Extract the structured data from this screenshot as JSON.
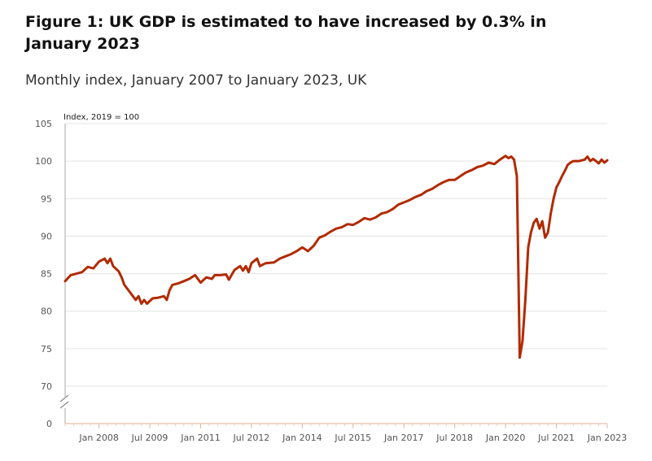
{
  "header": {
    "title": "Figure 1: UK GDP is estimated to have increased by 0.3% in January 2023",
    "subtitle": "Monthly index, January 2007 to January 2023, UK"
  },
  "chart_data": {
    "type": "line",
    "title": "Figure 1: UK GDP is estimated to have increased by 0.3% in January 2023",
    "subtitle": "Monthly index, January 2007 to January 2023, UK",
    "ylabel": "Index, 2019 = 100",
    "xlabel": "",
    "ylim": [
      0,
      105
    ],
    "y_axis_break": true,
    "y_ticks": [
      0,
      70,
      75,
      80,
      85,
      90,
      95,
      100,
      105
    ],
    "x_tick_labels": [
      "Jan 2008",
      "Jul 2009",
      "Jan 2011",
      "Jul 2012",
      "Jan 2014",
      "Jul 2015",
      "Jan 2017",
      "Jul 2018",
      "Jan 2020",
      "Jul 2021",
      "Jan 2023"
    ],
    "x_tick_dates": [
      "2008-01",
      "2009-07",
      "2011-01",
      "2012-07",
      "2014-01",
      "2015-07",
      "2017-01",
      "2018-07",
      "2020-01",
      "2021-07",
      "2023-01"
    ],
    "x_range": [
      "2007-01",
      "2023-01"
    ],
    "grid": true,
    "line_color": "#b22a00",
    "series": [
      {
        "values": [
          [
            "2007-01",
            84.0
          ],
          [
            "2007-03",
            84.8
          ],
          [
            "2007-05",
            85.0
          ],
          [
            "2007-07",
            85.2
          ],
          [
            "2007-09",
            85.9
          ],
          [
            "2007-11",
            85.7
          ],
          [
            "2008-01",
            86.6
          ],
          [
            "2008-03",
            87.0
          ],
          [
            "2008-04",
            86.4
          ],
          [
            "2008-05",
            87.0
          ],
          [
            "2008-06",
            86.0
          ],
          [
            "2008-08",
            85.3
          ],
          [
            "2008-09",
            84.5
          ],
          [
            "2008-10",
            83.5
          ],
          [
            "2008-11",
            83.0
          ],
          [
            "2008-12",
            82.5
          ],
          [
            "2009-01",
            82.0
          ],
          [
            "2009-02",
            81.5
          ],
          [
            "2009-03",
            82.0
          ],
          [
            "2009-04",
            81.0
          ],
          [
            "2009-05",
            81.5
          ],
          [
            "2009-06",
            81.0
          ],
          [
            "2009-08",
            81.7
          ],
          [
            "2009-10",
            81.8
          ],
          [
            "2009-12",
            82.0
          ],
          [
            "2010-01",
            81.5
          ],
          [
            "2010-02",
            82.8
          ],
          [
            "2010-03",
            83.5
          ],
          [
            "2010-05",
            83.7
          ],
          [
            "2010-07",
            84.0
          ],
          [
            "2010-09",
            84.3
          ],
          [
            "2010-11",
            84.8
          ],
          [
            "2011-01",
            83.8
          ],
          [
            "2011-03",
            84.5
          ],
          [
            "2011-05",
            84.3
          ],
          [
            "2011-06",
            84.8
          ],
          [
            "2011-08",
            84.8
          ],
          [
            "2011-10",
            84.9
          ],
          [
            "2011-11",
            84.2
          ],
          [
            "2012-01",
            85.5
          ],
          [
            "2012-03",
            86.0
          ],
          [
            "2012-04",
            85.4
          ],
          [
            "2012-05",
            86.0
          ],
          [
            "2012-06",
            85.2
          ],
          [
            "2012-07",
            86.4
          ],
          [
            "2012-09",
            87.0
          ],
          [
            "2012-10",
            86.0
          ],
          [
            "2012-12",
            86.4
          ],
          [
            "2013-03",
            86.5
          ],
          [
            "2013-05",
            87.0
          ],
          [
            "2013-07",
            87.3
          ],
          [
            "2013-09",
            87.6
          ],
          [
            "2013-11",
            88.0
          ],
          [
            "2014-01",
            88.5
          ],
          [
            "2014-03",
            88.0
          ],
          [
            "2014-05",
            88.7
          ],
          [
            "2014-07",
            89.8
          ],
          [
            "2014-09",
            90.1
          ],
          [
            "2014-11",
            90.6
          ],
          [
            "2015-01",
            91.0
          ],
          [
            "2015-03",
            91.2
          ],
          [
            "2015-05",
            91.6
          ],
          [
            "2015-07",
            91.5
          ],
          [
            "2015-09",
            91.9
          ],
          [
            "2015-11",
            92.4
          ],
          [
            "2016-01",
            92.2
          ],
          [
            "2016-03",
            92.5
          ],
          [
            "2016-05",
            93.0
          ],
          [
            "2016-07",
            93.2
          ],
          [
            "2016-09",
            93.6
          ],
          [
            "2016-11",
            94.2
          ],
          [
            "2017-01",
            94.5
          ],
          [
            "2017-03",
            94.8
          ],
          [
            "2017-05",
            95.2
          ],
          [
            "2017-07",
            95.5
          ],
          [
            "2017-09",
            96.0
          ],
          [
            "2017-11",
            96.3
          ],
          [
            "2018-01",
            96.8
          ],
          [
            "2018-03",
            97.2
          ],
          [
            "2018-05",
            97.5
          ],
          [
            "2018-07",
            97.5
          ],
          [
            "2018-09",
            98.0
          ],
          [
            "2018-11",
            98.5
          ],
          [
            "2019-01",
            98.8
          ],
          [
            "2019-03",
            99.2
          ],
          [
            "2019-05",
            99.4
          ],
          [
            "2019-07",
            99.8
          ],
          [
            "2019-09",
            99.6
          ],
          [
            "2019-11",
            100.2
          ],
          [
            "2020-01",
            100.7
          ],
          [
            "2020-02",
            100.4
          ],
          [
            "2020-03",
            100.6
          ],
          [
            "2020-04",
            100.2
          ],
          [
            "2020-05",
            98.0
          ],
          [
            "2020-06",
            73.8
          ],
          [
            "2020-07",
            76.0
          ],
          [
            "2020-08",
            81.5
          ],
          [
            "2020-09",
            88.5
          ],
          [
            "2020-10",
            90.5
          ],
          [
            "2020-11",
            91.8
          ],
          [
            "2020-12",
            92.3
          ],
          [
            "2021-01",
            91.0
          ],
          [
            "2021-02",
            92.0
          ],
          [
            "2021-03",
            89.8
          ],
          [
            "2021-04",
            90.5
          ],
          [
            "2021-05",
            93.0
          ],
          [
            "2021-06",
            95.0
          ],
          [
            "2021-07",
            96.5
          ],
          [
            "2021-08",
            97.2
          ],
          [
            "2021-09",
            98.0
          ],
          [
            "2021-10",
            98.7
          ],
          [
            "2021-11",
            99.5
          ],
          [
            "2021-12",
            99.8
          ],
          [
            "2022-01",
            100.0
          ],
          [
            "2022-03",
            100.0
          ],
          [
            "2022-05",
            100.2
          ],
          [
            "2022-06",
            100.6
          ],
          [
            "2022-07",
            100.0
          ],
          [
            "2022-08",
            100.3
          ],
          [
            "2022-09",
            100.0
          ],
          [
            "2022-10",
            99.7
          ],
          [
            "2022-11",
            100.2
          ],
          [
            "2022-12",
            99.8
          ],
          [
            "2023-01",
            100.1
          ]
        ]
      }
    ]
  }
}
